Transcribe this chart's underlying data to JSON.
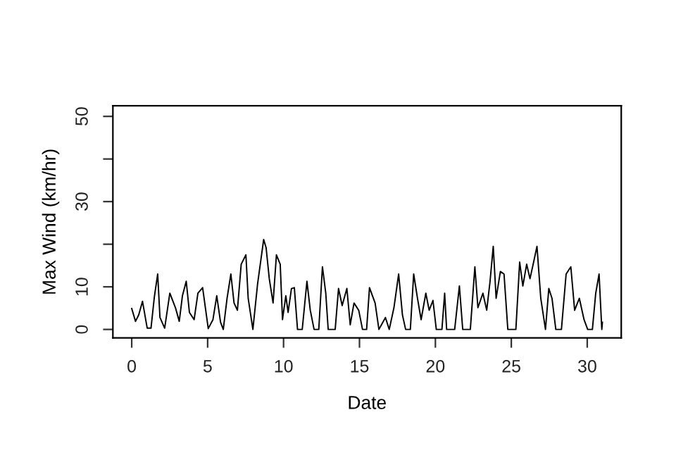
{
  "chart_data": {
    "type": "line",
    "xlabel": "Date",
    "ylabel": "Max Wind (km/hr)",
    "xlim": [
      -1.24,
      32.24
    ],
    "ylim": [
      -2,
      52.5
    ],
    "xticks": [
      0,
      5,
      10,
      15,
      20,
      25,
      30
    ],
    "yticks": [
      0,
      10,
      {
        "value": 20,
        "label": null
      },
      30,
      {
        "value": 40,
        "label": null
      },
      50
    ],
    "grid": false,
    "marker": "none",
    "line_style": "solid",
    "series": [
      {
        "color": "#000000",
        "x": [
          0,
          0.25,
          0.46,
          0.71,
          1.02,
          1.27,
          1.49,
          1.71,
          1.86,
          2.17,
          2.51,
          2.88,
          3.13,
          3.34,
          3.59,
          3.8,
          4.11,
          4.36,
          4.67,
          5.04,
          5.35,
          5.6,
          5.85,
          6.03,
          6.28,
          6.53,
          6.74,
          6.96,
          7.21,
          7.52,
          7.67,
          7.98,
          8.29,
          8.69,
          8.85,
          9.06,
          9.31,
          9.53,
          9.78,
          9.93,
          10.15,
          10.3,
          10.52,
          10.71,
          10.92,
          11.23,
          11.54,
          11.76,
          12.01,
          12.32,
          12.56,
          12.78,
          12.94,
          13.4,
          13.62,
          13.86,
          14.17,
          14.39,
          14.64,
          14.95,
          15.2,
          15.47,
          15.66,
          16.03,
          16.28,
          16.71,
          16.96,
          17.27,
          17.58,
          17.83,
          18.04,
          18.35,
          18.57,
          18.82,
          19.06,
          19.37,
          19.59,
          19.84,
          20.06,
          20.43,
          20.61,
          20.74,
          21.27,
          21.58,
          21.8,
          22.3,
          22.6,
          22.8,
          23.13,
          23.38,
          23.6,
          23.81,
          24.0,
          24.28,
          24.52,
          24.77,
          25.3,
          25.55,
          25.76,
          26.01,
          26.23,
          26.47,
          26.69,
          26.94,
          27.25,
          27.47,
          27.68,
          27.93,
          28.3,
          28.61,
          28.92,
          29.17,
          29.48,
          29.79,
          30.03,
          30.34,
          30.56,
          30.78,
          30.96,
          31.0
        ],
        "values": [
          4.9,
          1.9,
          3.4,
          6.6,
          0.3,
          0.3,
          7.6,
          13,
          2.8,
          0.3,
          8.5,
          5.1,
          1.9,
          7.9,
          11.3,
          4,
          2.3,
          8.5,
          9.8,
          0.2,
          2.3,
          7.9,
          1.7,
          0,
          7.3,
          13,
          6.2,
          4.5,
          15.3,
          17.5,
          7.3,
          0,
          10.7,
          21.1,
          19.2,
          11.9,
          6.2,
          17.5,
          15.3,
          2.3,
          7.9,
          4,
          9.6,
          9.8,
          0,
          0,
          11.3,
          4.5,
          0,
          0,
          14.7,
          8.5,
          0,
          0,
          9.6,
          5.6,
          9.6,
          1.1,
          6.2,
          4.5,
          0,
          0,
          9.8,
          6.2,
          0,
          2.8,
          0,
          5.1,
          13,
          3.4,
          0,
          0,
          13,
          7.3,
          2.3,
          8.5,
          4.5,
          6.8,
          0,
          0,
          8.5,
          0,
          0,
          10.2,
          0,
          0,
          14.7,
          5.1,
          8.5,
          4.5,
          11.3,
          19.5,
          7.3,
          13.6,
          13,
          0,
          0,
          15.8,
          10.2,
          15.3,
          11.9,
          15.8,
          19.5,
          7.3,
          0,
          9.6,
          7.3,
          0,
          0,
          13,
          14.7,
          4.5,
          7.3,
          2.3,
          0,
          0,
          8.5,
          13,
          0,
          1.7
        ]
      }
    ]
  }
}
